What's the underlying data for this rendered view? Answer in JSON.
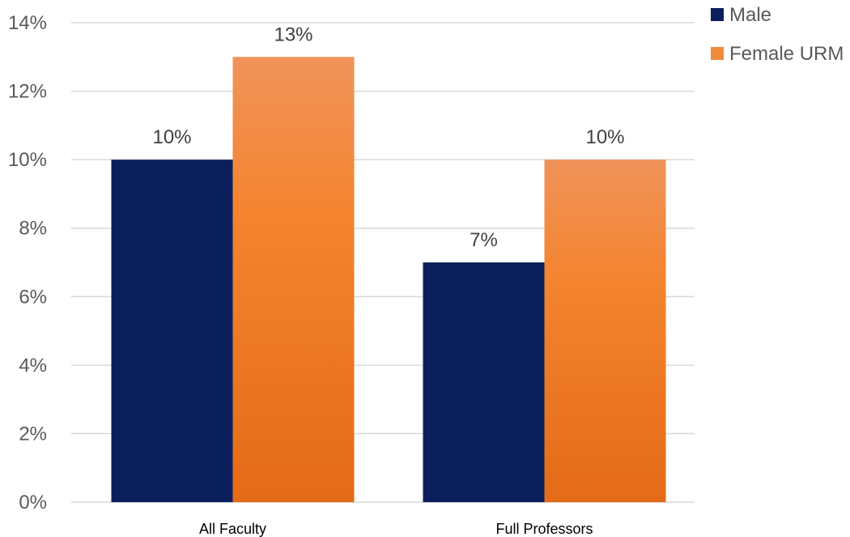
{
  "chart_data": {
    "type": "bar",
    "title": "",
    "xlabel": "",
    "ylabel": "",
    "categories": [
      "All Faculty",
      "Full Professors"
    ],
    "series": [
      {
        "name": "Male",
        "values": [
          10,
          7
        ],
        "labels": [
          "10%",
          "7%"
        ],
        "color": "#0b1f5c"
      },
      {
        "name": "Female URM",
        "values": [
          13,
          10
        ],
        "labels": [
          "13%",
          "10%"
        ],
        "color": "#f08a3c"
      }
    ],
    "ylim": [
      0,
      14
    ],
    "yticks": [
      0,
      2,
      4,
      6,
      8,
      10,
      12,
      14
    ],
    "ytick_labels": [
      "0%",
      "2%",
      "4%",
      "6%",
      "8%",
      "10%",
      "12%",
      "14%"
    ],
    "grid": true,
    "legend_position": "top-right"
  }
}
